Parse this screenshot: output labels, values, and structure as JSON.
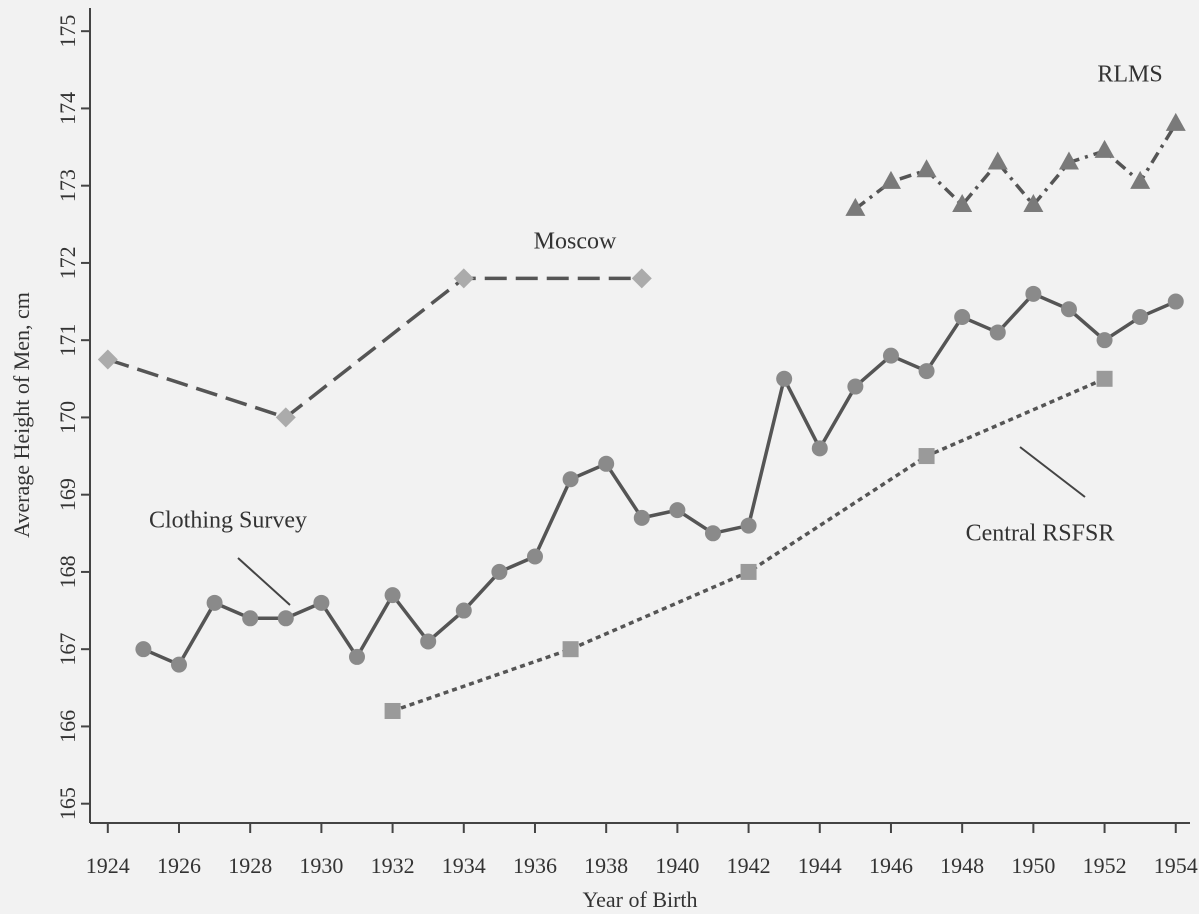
{
  "chart_data": {
    "type": "line",
    "xlabel": "Year of Birth",
    "ylabel": "Average Height of Men, cm",
    "xlim": [
      1923.5,
      1954.4
    ],
    "ylim": [
      164.75,
      175.3
    ],
    "xticks": [
      1924,
      1926,
      1928,
      1930,
      1932,
      1934,
      1936,
      1938,
      1940,
      1942,
      1944,
      1946,
      1948,
      1950,
      1952,
      1954
    ],
    "yticks": [
      165,
      166,
      167,
      168,
      169,
      170,
      171,
      172,
      173,
      174,
      175
    ],
    "series": [
      {
        "name": "Clothing Survey",
        "color": "#555555",
        "marker_color": "#8a8a8a",
        "marker": "circle",
        "linestyle": "solid",
        "x": [
          1925,
          1926,
          1927,
          1928,
          1929,
          1930,
          1931,
          1932,
          1933,
          1934,
          1935,
          1936,
          1937,
          1938,
          1939,
          1940,
          1941,
          1942,
          1943,
          1944,
          1945,
          1946,
          1947,
          1948,
          1949,
          1950,
          1951,
          1952,
          1953,
          1954
        ],
        "values": [
          167.0,
          166.8,
          167.6,
          167.4,
          167.4,
          167.6,
          166.9,
          167.7,
          167.1,
          167.5,
          168.0,
          168.2,
          169.2,
          169.4,
          168.7,
          168.8,
          168.5,
          168.6,
          170.5,
          169.6,
          170.4,
          170.8,
          170.6,
          171.3,
          171.1,
          171.6,
          171.4,
          171.0,
          171.3,
          171.5
        ]
      },
      {
        "name": "Moscow",
        "color": "#555555",
        "marker_color": "#ababab",
        "marker": "diamond",
        "linestyle": "dashed",
        "x": [
          1924,
          1929,
          1934,
          1939
        ],
        "values": [
          170.75,
          170.0,
          171.8,
          171.8
        ]
      },
      {
        "name": "Central RSFSR",
        "color": "#555555",
        "marker_color": "#9a9a9a",
        "marker": "square",
        "linestyle": "dotted",
        "x": [
          1932,
          1937,
          1942,
          1947,
          1952
        ],
        "values": [
          166.2,
          167.0,
          168.0,
          169.5,
          170.5
        ]
      },
      {
        "name": "RLMS",
        "color": "#555555",
        "marker_color": "#7a7a7a",
        "marker": "triangle",
        "linestyle": "dashdot",
        "x": [
          1945,
          1946,
          1947,
          1948,
          1949,
          1950,
          1951,
          1952,
          1953,
          1954
        ],
        "values": [
          172.7,
          173.05,
          173.2,
          172.75,
          173.3,
          172.75,
          173.3,
          173.45,
          173.05,
          173.8
        ]
      }
    ]
  }
}
